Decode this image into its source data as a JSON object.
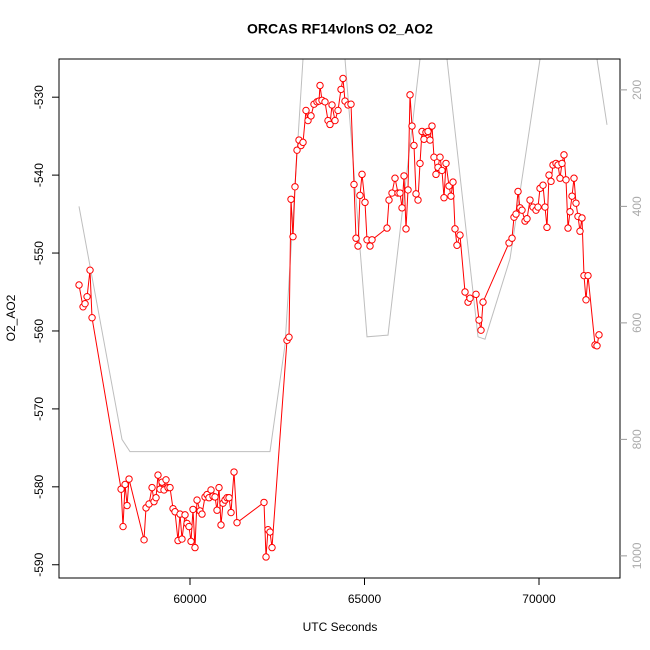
{
  "chart_data": {
    "type": "line",
    "title": "ORCAS RF14vlonS O2_AO2",
    "x_label": "UTC Seconds",
    "y_label": "O2_AO2",
    "xlim": [
      56246,
      72321
    ],
    "ylim": [
      -591.7,
      -525.1
    ],
    "y2lim": [
      1038,
      147
    ],
    "xticks": [
      60000,
      65000,
      70000
    ],
    "yticks": [
      -590,
      -580,
      -570,
      -560,
      -550,
      -540,
      -530
    ],
    "y2ticks": [
      200,
      400,
      600,
      800,
      1000
    ],
    "series": [
      {
        "color": "#ff0000",
        "markers": true,
        "x": [
          56820,
          56935,
          56992,
          57050,
          57135,
          57193,
          58024,
          58081,
          58139,
          58196,
          58253,
          58683,
          58740,
          58826,
          58912,
          58969,
          59026,
          59083,
          59140,
          59198,
          59255,
          59312,
          59370,
          59427,
          59513,
          59570,
          59656,
          59713,
          59770,
          59857,
          59914,
          59971,
          60029,
          60086,
          60143,
          60201,
          60287,
          60344,
          60430,
          60487,
          60544,
          60602,
          60659,
          60716,
          60774,
          60831,
          60888,
          60946,
          61003,
          61060,
          61118,
          61175,
          61261,
          61347,
          62120,
          62178,
          62235,
          62292,
          62350,
          62779,
          62836,
          62894,
          62951,
          63008,
          63066,
          63123,
          63180,
          63238,
          63324,
          63381,
          63467,
          63553,
          63639,
          63696,
          63725,
          63782,
          63868,
          63954,
          64011,
          64069,
          64155,
          64241,
          64327,
          64384,
          64441,
          64527,
          64613,
          64699,
          64757,
          64814,
          64871,
          64929,
          65014,
          65072,
          65158,
          65215,
          65645,
          65702,
          65788,
          65874,
          65960,
          66017,
          66075,
          66132,
          66189,
          66247,
          66304,
          66361,
          66418,
          66476,
          66533,
          66590,
          66648,
          66705,
          66762,
          66819,
          66877,
          66934,
          66991,
          67048,
          67106,
          67163,
          67220,
          67278,
          67335,
          67421,
          67478,
          67536,
          67593,
          67650,
          67736,
          67880,
          67966,
          68023,
          68195,
          68281,
          68338,
          68396,
          69141,
          69227,
          69284,
          69341,
          69399,
          69456,
          69513,
          69599,
          69656,
          69742,
          69828,
          69914,
          69971,
          70029,
          70115,
          70172,
          70229,
          70287,
          70344,
          70401,
          70487,
          70544,
          70602,
          70659,
          70716,
          70774,
          70831,
          70888,
          70946,
          71003,
          71060,
          71117,
          71175,
          71232,
          71289,
          71347,
          71404,
          71605,
          71662,
          71719
        ],
        "values": [
          -554.1,
          -556.9,
          -556.5,
          -555.6,
          -552.2,
          -558.3,
          -580.3,
          -585.1,
          -579.7,
          -582.4,
          -579.0,
          -586.8,
          -582.7,
          -582.2,
          -580.1,
          -581.9,
          -581.4,
          -578.5,
          -580.3,
          -579.4,
          -580.4,
          -579.1,
          -580.1,
          -580.1,
          -582.8,
          -583.2,
          -586.9,
          -583.5,
          -586.7,
          -583.6,
          -584.7,
          -585.1,
          -587.0,
          -582.9,
          -587.8,
          -581.7,
          -583.1,
          -583.5,
          -581.3,
          -581.0,
          -581.4,
          -580.4,
          -581.2,
          -581.3,
          -583.0,
          -580.1,
          -584.9,
          -582.1,
          -581.7,
          -581.4,
          -581.4,
          -583.3,
          -578.1,
          -584.6,
          -582.0,
          -589.0,
          -585.5,
          -585.8,
          -587.8,
          -561.2,
          -560.8,
          -543.1,
          -547.9,
          -541.5,
          -536.8,
          -535.5,
          -536.2,
          -535.8,
          -531.7,
          -533.0,
          -532.4,
          -530.9,
          -530.6,
          -530.5,
          -528.5,
          -530.4,
          -530.6,
          -533.0,
          -533.5,
          -531.0,
          -533.0,
          -531.7,
          -529.0,
          -527.6,
          -530.5,
          -531.0,
          -530.9,
          -541.2,
          -548.1,
          -549.1,
          -542.6,
          -539.9,
          -543.5,
          -548.3,
          -549.1,
          -548.3,
          -546.8,
          -543.2,
          -542.3,
          -540.4,
          -542.3,
          -542.3,
          -544.2,
          -540.1,
          -546.9,
          -541.9,
          -529.7,
          -533.7,
          -536.2,
          -542.4,
          -543.2,
          -538.5,
          -534.4,
          -535.4,
          -534.5,
          -534.4,
          -535.5,
          -533.7,
          -537.7,
          -539.9,
          -539.0,
          -537.7,
          -539.4,
          -542.9,
          -538.5,
          -541.4,
          -542.7,
          -540.9,
          -546.9,
          -549.0,
          -547.7,
          -555.0,
          -556.3,
          -555.8,
          -555.3,
          -558.6,
          -559.9,
          -556.3,
          -548.7,
          -548.1,
          -545.4,
          -545.0,
          -542.1,
          -544.2,
          -544.5,
          -545.9,
          -545.6,
          -543.2,
          -544.1,
          -544.5,
          -544.1,
          -541.7,
          -541.3,
          -544.1,
          -546.7,
          -540.0,
          -540.8,
          -538.7,
          -538.5,
          -538.7,
          -540.4,
          -538.5,
          -537.4,
          -540.6,
          -546.8,
          -544.7,
          -542.7,
          -540.4,
          -543.6,
          -545.3,
          -547.2,
          -545.5,
          -552.9,
          -556.0,
          -552.9,
          -561.8,
          -561.9,
          -560.5
        ]
      },
      {
        "color": "#bebebe",
        "axis": "y2",
        "markers": false,
        "x": [
          56819,
          58051,
          58280,
          62292,
          62722,
          63237,
          63840,
          64441,
          65071,
          65673,
          66590,
          66980,
          67363,
          68251,
          68452,
          69169,
          70028,
          70845,
          71661,
          71948
        ],
        "values": [
          400,
          800,
          821,
          821,
          638,
          147,
          60,
          147,
          624,
          621,
          147,
          60,
          147,
          624,
          628,
          490,
          147,
          60,
          147,
          260
        ]
      }
    ]
  }
}
